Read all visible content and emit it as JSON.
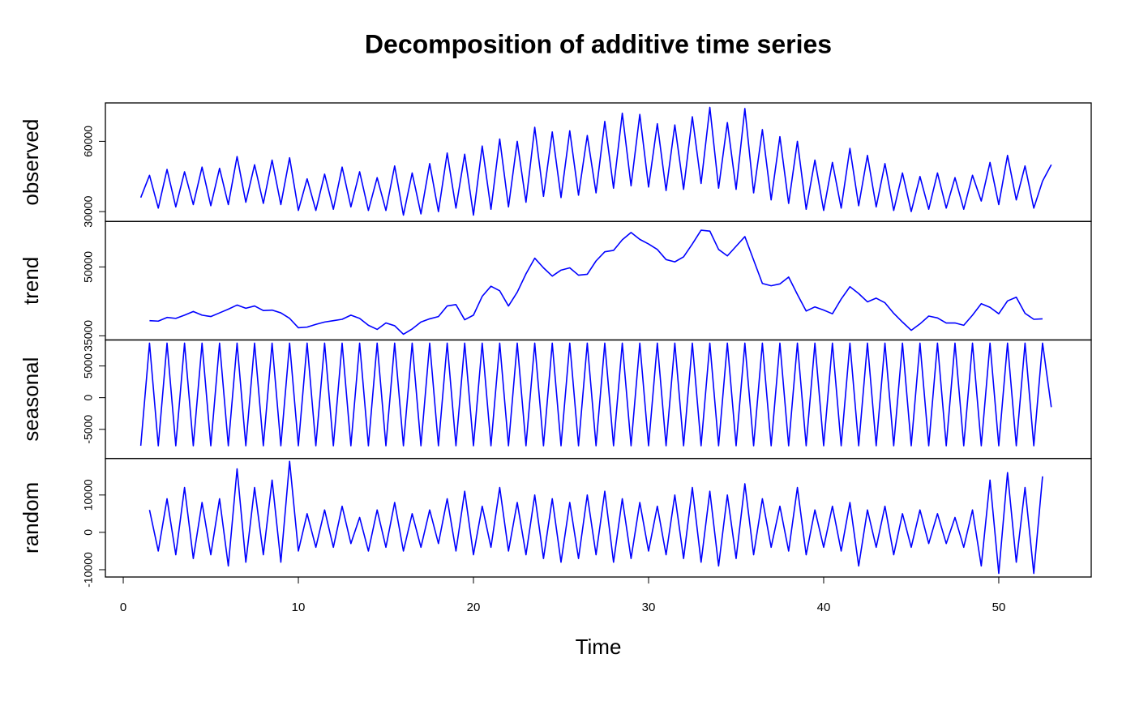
{
  "chart_data": {
    "type": "line",
    "title": "Decomposition of additive time series",
    "xlabel": "Time",
    "color": "#0000ff",
    "xlim": [
      -1.02,
      55.28
    ],
    "xticks": [
      0,
      10,
      20,
      30,
      40,
      50
    ],
    "x": [
      1,
      1.5,
      2,
      2.5,
      3,
      3.5,
      4,
      4.5,
      5,
      5.5,
      6,
      6.5,
      7,
      7.5,
      8,
      8.5,
      9,
      9.5,
      10,
      10.5,
      11,
      11.5,
      12,
      12.5,
      13,
      13.5,
      14,
      14.5,
      15,
      15.5,
      16,
      16.5,
      17,
      17.5,
      18,
      18.5,
      19,
      19.5,
      20,
      20.5,
      21,
      21.5,
      22,
      22.5,
      23,
      23.5,
      24,
      24.5,
      25,
      25.5,
      26,
      26.5,
      27,
      27.5,
      28,
      28.5,
      29,
      29.5,
      30,
      30.5,
      31,
      31.5,
      32,
      32.5,
      33,
      33.5,
      34,
      34.5,
      35,
      35.5,
      36,
      36.5,
      37,
      37.5,
      38,
      38.5,
      39,
      39.5,
      40,
      40.5,
      41,
      41.5,
      42,
      42.5,
      43,
      43.5,
      44,
      44.5,
      45,
      45.5,
      46,
      46.5,
      47,
      47.5,
      48,
      48.5,
      49,
      49.5,
      50,
      50.5,
      51,
      51.5,
      52,
      52.5,
      53
    ],
    "panels": [
      {
        "name": "observed",
        "ylim": [
          25800,
          76400
        ],
        "yticks": [
          30000,
          60000
        ],
        "values": [
          36000,
          45500,
          31500,
          48000,
          32000,
          47000,
          33000,
          49000,
          32500,
          48500,
          33000,
          53500,
          34000,
          50000,
          33500,
          52000,
          33000,
          53000,
          30500,
          44000,
          30500,
          46000,
          31000,
          49000,
          32000,
          47000,
          30500,
          44500,
          30500,
          49500,
          28500,
          46500,
          29000,
          50500,
          30000,
          55000,
          31500,
          54500,
          28500,
          58000,
          31000,
          61000,
          32000,
          60000,
          34000,
          66000,
          36500,
          64000,
          36000,
          64500,
          37000,
          62500,
          38000,
          68500,
          40000,
          72000,
          41000,
          71500,
          40500,
          67500,
          39000,
          67000,
          39500,
          70500,
          42000,
          74500,
          40000,
          68000,
          39500,
          74000,
          38000,
          65000,
          35000,
          62000,
          33500,
          60000,
          31000,
          52000,
          30500,
          51000,
          31500,
          57000,
          32500,
          54000,
          32000,
          50500,
          30500,
          46500,
          30000,
          45000,
          31000,
          46500,
          31500,
          44500,
          31000,
          45500,
          34500,
          51000,
          33000,
          54000,
          35000,
          49500,
          31500,
          43000,
          50000
        ]
      },
      {
        "name": "trend",
        "ylim": [
          34100,
          59900
        ],
        "yticks": [
          35000,
          50000
        ],
        "values": [
          null,
          38300,
          38200,
          39000,
          38800,
          39500,
          40300,
          39500,
          39200,
          40000,
          40800,
          41700,
          41000,
          41500,
          40500,
          40600,
          40000,
          38800,
          36750,
          36900,
          37500,
          38000,
          38300,
          38600,
          39500,
          38800,
          37300,
          36400,
          37800,
          37200,
          35350,
          36500,
          38000,
          38700,
          39200,
          41500,
          41800,
          38500,
          39500,
          43600,
          45800,
          44800,
          41500,
          44500,
          48500,
          51900,
          49800,
          48000,
          49300,
          49800,
          48200,
          48400,
          51300,
          53300,
          53600,
          55900,
          57500,
          56000,
          55000,
          53800,
          51600,
          51100,
          52200,
          55000,
          58000,
          57800,
          53800,
          52400,
          54500,
          56600,
          51500,
          46400,
          45900,
          46300,
          47800,
          44000,
          40400,
          41300,
          40600,
          39800,
          43000,
          45700,
          44200,
          42400,
          43200,
          42200,
          39900,
          38000,
          36200,
          37600,
          39300,
          38900,
          37800,
          37800,
          37300,
          39500,
          42000,
          41200,
          39800,
          42600,
          43400,
          39900,
          38600,
          38700,
          null
        ]
      },
      {
        "name": "seasonal",
        "ylim": [
          -9600,
          9100
        ],
        "yticks": [
          -5000,
          0,
          5000
        ],
        "values": [
          -7600,
          8600,
          -7600,
          8600,
          -7600,
          8600,
          -7600,
          8600,
          -7600,
          8600,
          -7600,
          8600,
          -7600,
          8600,
          -7600,
          8600,
          -7600,
          8600,
          -7600,
          8600,
          -7600,
          8600,
          -7600,
          8600,
          -7600,
          8600,
          -7600,
          8600,
          -7600,
          8600,
          -7600,
          8600,
          -7600,
          8600,
          -7600,
          8600,
          -7600,
          8600,
          -7600,
          8600,
          -7600,
          8600,
          -7600,
          8600,
          -7600,
          8600,
          -7600,
          8600,
          -7600,
          8600,
          -7600,
          8600,
          -7600,
          8600,
          -7600,
          8600,
          -7600,
          8600,
          -7600,
          8600,
          -7600,
          8600,
          -7600,
          8600,
          -7600,
          8600,
          -7600,
          8600,
          -7600,
          8600,
          -7600,
          8600,
          -7600,
          8600,
          -7600,
          8600,
          -7600,
          8600,
          -7600,
          8600,
          -7600,
          8600,
          -7600,
          8600,
          -7600,
          8600,
          -7600,
          8600,
          -7600,
          8600,
          -7600,
          8600,
          -7600,
          8600,
          -7600,
          8600,
          -7600,
          8600,
          -7600,
          8600,
          -7600,
          8600,
          -7600,
          8600,
          -1500
        ]
      },
      {
        "name": "random",
        "ylim": [
          -11960,
          19780
        ],
        "yticks": [
          -10000,
          0,
          10000
        ],
        "values": [
          null,
          6000,
          -5000,
          9000,
          -6000,
          12000,
          -7000,
          8000,
          -6000,
          9000,
          -9000,
          17000,
          -8000,
          12000,
          -6000,
          14000,
          -8000,
          19000,
          -5000,
          5000,
          -4000,
          6000,
          -4000,
          7000,
          -3000,
          4000,
          -5000,
          6000,
          -4000,
          8000,
          -5000,
          5000,
          -4000,
          6000,
          -3000,
          9000,
          -5000,
          11000,
          -6000,
          7000,
          -4000,
          12000,
          -5000,
          8000,
          -6000,
          10000,
          -7000,
          9000,
          -8000,
          8000,
          -7000,
          10000,
          -6000,
          11000,
          -8000,
          9000,
          -7000,
          8000,
          -5000,
          7000,
          -6000,
          10000,
          -7000,
          12000,
          -8000,
          11000,
          -9000,
          10000,
          -7000,
          13000,
          -6000,
          9000,
          -4000,
          7000,
          -5000,
          12000,
          -6000,
          6000,
          -4000,
          7000,
          -5000,
          8000,
          -9000,
          6000,
          -4000,
          7000,
          -6000,
          5000,
          -4000,
          6000,
          -3000,
          5000,
          -3000,
          4000,
          -4000,
          6000,
          -9000,
          14000,
          -11000,
          16000,
          -8000,
          12000,
          -11000,
          15000,
          null
        ]
      }
    ]
  }
}
